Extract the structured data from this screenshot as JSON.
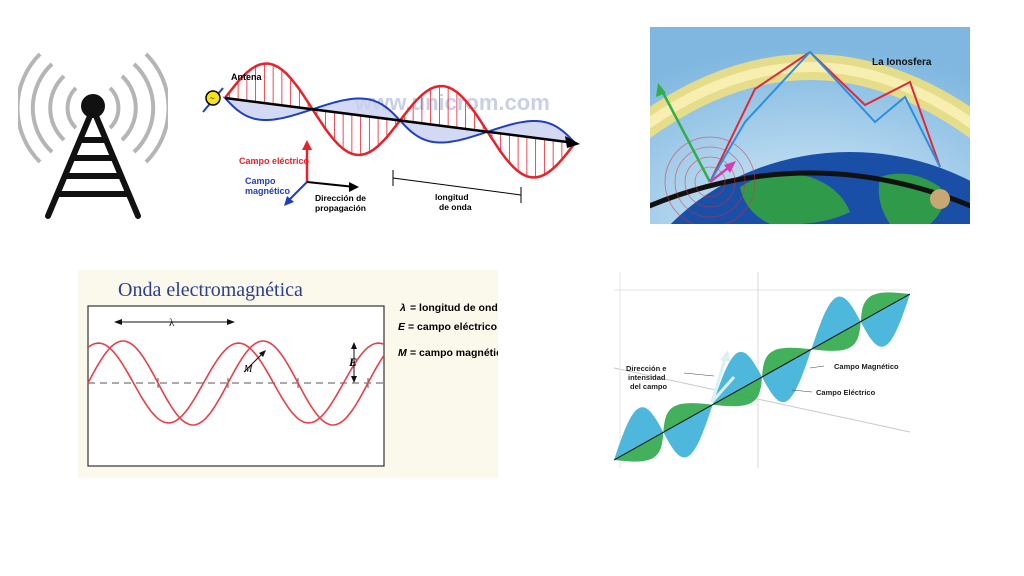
{
  "antenna_diagram": {
    "antenna_label": "Antena",
    "watermark": "www.unicrom.com",
    "electric_label": "Campo eléctrico",
    "magnetic_label_1": "Campo",
    "magnetic_label_2": "magnético",
    "propagation_label_1": "Dirección de",
    "propagation_label_2": "propagación",
    "wavelength_label_1": "longitud",
    "wavelength_label_2": "de onda",
    "colors": {
      "electric": "#e8212a",
      "magnetic": "#1f3fbf",
      "axis": "#000000"
    }
  },
  "ionosphere_diagram": {
    "label": "La Ionosfera",
    "colors": {
      "sky": "#a9d3ee",
      "ocean": "#1a4fa8",
      "land": "#2f9a4a",
      "red_ray": "#e0283a",
      "blue_ray": "#2b8fe0"
    }
  },
  "em_wave_diagram": {
    "title": "Onda electromagnética",
    "lambda_symbol": "λ",
    "legend": [
      {
        "symbol": "λ",
        "text": "= longitud de onda"
      },
      {
        "symbol": "E",
        "text": "= campo eléctrico"
      },
      {
        "symbol": "M",
        "text": "= campo magnético"
      }
    ],
    "marker_E": "E",
    "marker_M": "M",
    "colors": {
      "wave": "#e8404a",
      "title": "#2a3f8f",
      "frame_bg": "#fbf8ec"
    }
  },
  "field_diagram": {
    "direction_label_1": "Dirección e",
    "direction_label_2": "intensidad",
    "direction_label_3": "del campo",
    "magnetic_label": "Campo Magnético",
    "electric_label": "Campo Eléctrico",
    "colors": {
      "cyan": "#3ab0d8",
      "green": "#2fa84a"
    }
  }
}
